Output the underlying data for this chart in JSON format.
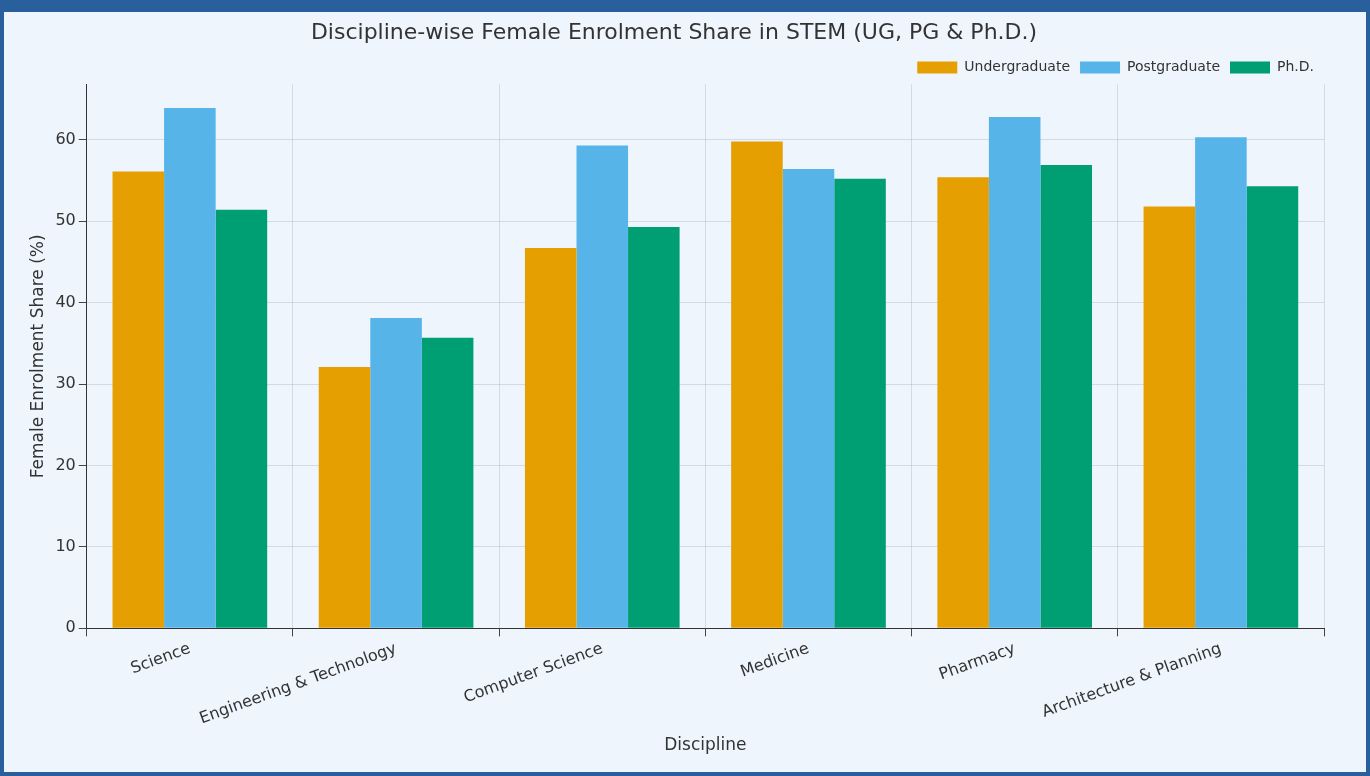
{
  "chart_data": {
    "type": "bar",
    "title": "Discipline-wise Female Enrolment Share in STEM (UG, PG & Ph.D.)",
    "xlabel": "Discipline",
    "ylabel": "Female Enrolment Share (%)",
    "categories": [
      "Science",
      "Engineering & Technology",
      "Computer Science",
      "Medicine",
      "Pharmacy",
      "Architecture & Planning"
    ],
    "series": [
      {
        "name": "Undergraduate",
        "color": "#e69f00",
        "values": [
          56.1,
          32.1,
          46.7,
          59.8,
          55.4,
          51.8
        ]
      },
      {
        "name": "Postgraduate",
        "color": "#56b4e9",
        "values": [
          63.9,
          38.1,
          59.3,
          56.4,
          62.8,
          60.3
        ]
      },
      {
        "name": "Ph.D.",
        "color": "#009e73",
        "values": [
          51.4,
          35.7,
          49.3,
          55.2,
          56.9,
          54.3
        ]
      }
    ],
    "ylim": [
      0,
      66.8
    ],
    "yticks": [
      0,
      10,
      20,
      30,
      40,
      50,
      60
    ],
    "grid": true,
    "legend": "top right"
  }
}
